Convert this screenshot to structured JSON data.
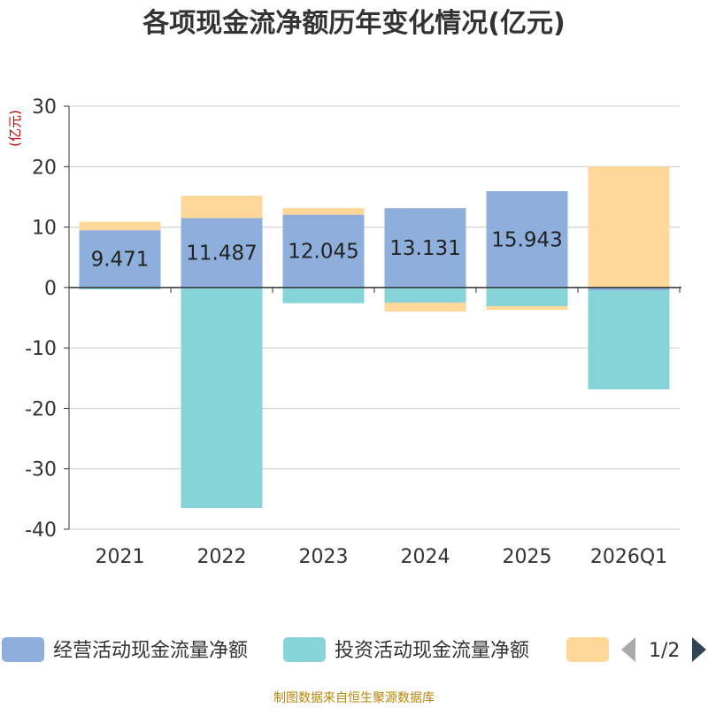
{
  "chart_data": {
    "type": "bar",
    "stacked": true,
    "title": "各项现金流净额历年变化情况(亿元)",
    "ylabel": "(亿元)",
    "xlabel": "",
    "ylim": [
      -40,
      30
    ],
    "yticks": [
      30,
      20,
      10,
      0,
      -10,
      -20,
      -30,
      -40
    ],
    "grid": true,
    "categories": [
      "2021",
      "2022",
      "2023",
      "2024",
      "2025",
      "2026Q1"
    ],
    "series": [
      {
        "name": "经营活动现金流量净额",
        "color": "#8eaedb",
        "values": [
          9.471,
          11.487,
          12.045,
          13.131,
          15.943,
          -0.47
        ],
        "labels": [
          "9.471",
          "11.487",
          "12.045",
          "13.131",
          "15.943",
          ""
        ]
      },
      {
        "name": "投资活动现金流量净额",
        "color": "#87d4d8",
        "values": [
          -0.3,
          -36.5,
          -2.6,
          -2.5,
          -3.1,
          -16.4
        ],
        "labels": []
      },
      {
        "name": "",
        "color": "#ffd899",
        "values": [
          1.4,
          3.7,
          1.1,
          -1.5,
          -0.6,
          20.0
        ],
        "labels": []
      }
    ],
    "legend": {
      "position": "bottom",
      "page": "1/2"
    }
  },
  "footer": "制图数据来自恒生聚源数据库"
}
